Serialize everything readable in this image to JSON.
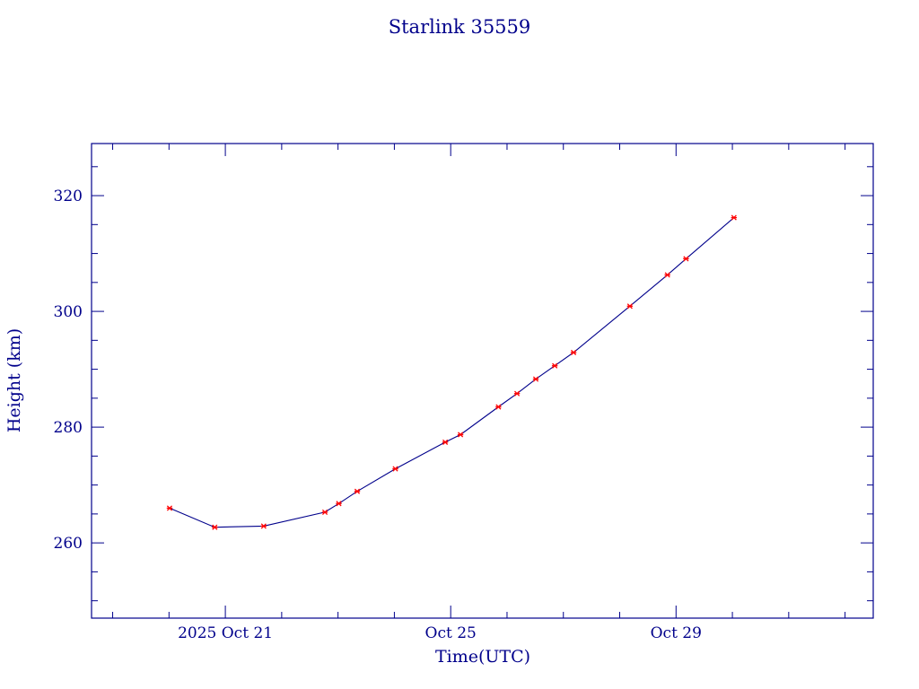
{
  "chart_data": {
    "type": "line",
    "title": "Starlink 35559",
    "xlabel": "Time(UTC)",
    "ylabel": "Height (km)",
    "x_ticks": [
      {
        "date": "2025-10-21",
        "label": "2025 Oct 21"
      },
      {
        "date": "2025-10-25",
        "label": "Oct 25"
      },
      {
        "date": "2025-10-29",
        "label": "Oct 29"
      }
    ],
    "y_ticks": [
      260,
      280,
      300,
      320
    ],
    "xlim": [
      "2025-10-18 15:00",
      "2025-11-01 12:00"
    ],
    "ylim": [
      247,
      329
    ],
    "grid": false,
    "series": [
      {
        "color": "#00008b",
        "marker_color": "#ff0000",
        "points": [
          {
            "x": "2025-10-20 00:15",
            "y": 266.0
          },
          {
            "x": "2025-10-20 19:30",
            "y": 262.7
          },
          {
            "x": "2025-10-21 16:20",
            "y": 262.9
          },
          {
            "x": "2025-10-22 18:25",
            "y": 265.3
          },
          {
            "x": "2025-10-23 00:20",
            "y": 266.8
          },
          {
            "x": "2025-10-23 08:10",
            "y": 268.9
          },
          {
            "x": "2025-10-24 00:25",
            "y": 272.8
          },
          {
            "x": "2025-10-24 21:40",
            "y": 277.4
          },
          {
            "x": "2025-10-25 04:10",
            "y": 278.7
          },
          {
            "x": "2025-10-25 20:20",
            "y": 283.5
          },
          {
            "x": "2025-10-26 04:15",
            "y": 285.8
          },
          {
            "x": "2025-10-26 12:15",
            "y": 288.3
          },
          {
            "x": "2025-10-26 20:20",
            "y": 290.6
          },
          {
            "x": "2025-10-27 04:20",
            "y": 292.9
          },
          {
            "x": "2025-10-28 04:20",
            "y": 300.9
          },
          {
            "x": "2025-10-28 20:20",
            "y": 306.3
          },
          {
            "x": "2025-10-29 04:15",
            "y": 309.1
          },
          {
            "x": "2025-10-30 00:40",
            "y": 316.2
          }
        ]
      }
    ]
  }
}
